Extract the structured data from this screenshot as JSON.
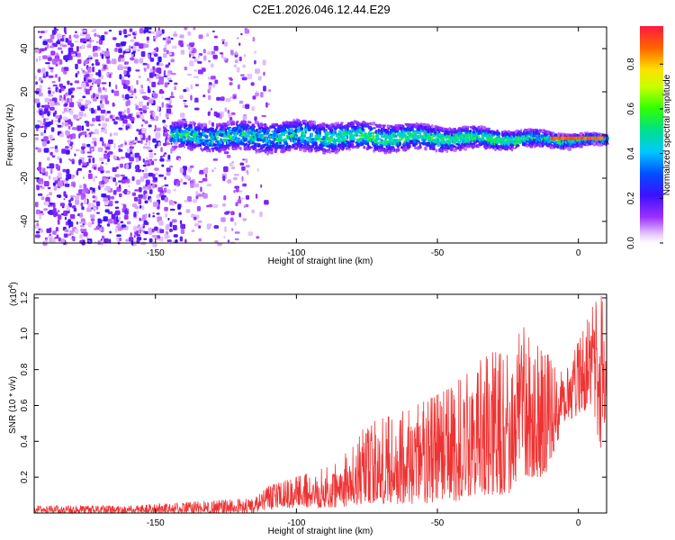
{
  "page": {
    "title": "C2E1.2026.046.12.44.E29"
  },
  "chart_data": [
    {
      "type": "heatmap",
      "title": "C2E1.2026.046.12.44.E29",
      "xlabel": "Height of straight line (km)",
      "ylabel": "Frequency (Hz)",
      "xlim": [
        -193,
        10
      ],
      "ylim": [
        -50,
        50
      ],
      "xticks": [
        -150,
        -100,
        -50,
        0
      ],
      "yticks": [
        -40,
        -20,
        0,
        20,
        40
      ],
      "noise_band": {
        "x_start": -193,
        "x_end": -110,
        "density_fade_start": -145
      },
      "signal_band": {
        "x_start": -145,
        "x_end": 10,
        "center_hz": 0,
        "width_profile": [
          [
            -145,
            6
          ],
          [
            -100,
            7
          ],
          [
            -60,
            6
          ],
          [
            -20,
            4
          ],
          [
            0,
            3
          ],
          [
            10,
            2
          ]
        ],
        "strong_segment": {
          "x_start": -10,
          "x_end": 8,
          "hz": -1.5,
          "amplitude": 0.95
        }
      },
      "colorbar": {
        "label": "Normalized spectral amplitude",
        "range": [
          0,
          0.97
        ],
        "ticks": [
          0.0,
          0.2,
          0.4,
          0.6,
          0.8
        ]
      }
    },
    {
      "type": "line",
      "xlabel": "Height of straight line (km)",
      "ylabel": "SNR (10 * v/v)",
      "scale_label": "(x10",
      "scale_exp": "4",
      "scale_close": ")",
      "xlim": [
        -193,
        10
      ],
      "ylim": [
        0,
        1.22
      ],
      "xticks": [
        -150,
        -100,
        -50,
        0
      ],
      "yticks": [
        0.2,
        0.4,
        0.6,
        0.8,
        1.0,
        1.2
      ],
      "series": [
        {
          "name": "SNR",
          "color": "#ee3333",
          "envelope": [
            [
              -193,
              0.0,
              0.04
            ],
            [
              -160,
              0.0,
              0.04
            ],
            [
              -130,
              0.0,
              0.07
            ],
            [
              -115,
              0.0,
              0.08
            ],
            [
              -110,
              0.02,
              0.15
            ],
            [
              -100,
              0.03,
              0.2
            ],
            [
              -85,
              0.03,
              0.28
            ],
            [
              -75,
              0.05,
              0.5
            ],
            [
              -65,
              0.05,
              0.55
            ],
            [
              -55,
              0.05,
              0.62
            ],
            [
              -45,
              0.05,
              0.7
            ],
            [
              -38,
              0.1,
              0.82
            ],
            [
              -30,
              0.1,
              0.9
            ],
            [
              -25,
              0.1,
              0.88
            ],
            [
              -20,
              0.2,
              1.05
            ],
            [
              -12,
              0.2,
              0.88
            ],
            [
              -5,
              0.5,
              0.9
            ],
            [
              0,
              0.55,
              0.95
            ],
            [
              5,
              0.6,
              1.15
            ],
            [
              8,
              0.3,
              1.22
            ],
            [
              10,
              0.6,
              1.05
            ]
          ]
        }
      ]
    }
  ]
}
